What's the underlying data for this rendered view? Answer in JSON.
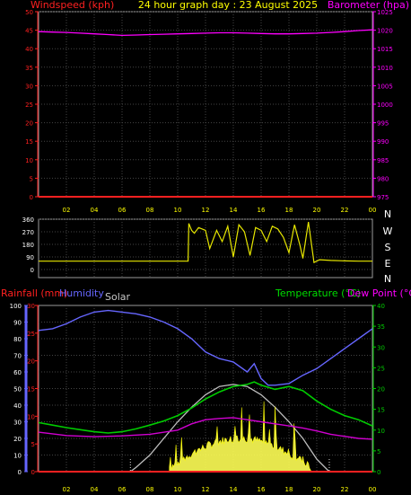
{
  "header": {
    "left_label": "Windspeed (kph)",
    "title": "24 hour graph day : 23 August 2025",
    "right_label": "Barometer (hpa)"
  },
  "colors": {
    "wind": "#ff2020",
    "barometer": "#ff00ff",
    "direction": "#e6e600",
    "humidity": "#6666ff",
    "rain": "#ff2020",
    "solar": "#ffff55",
    "temperature": "#00cc00",
    "dewpoint": "#d000d0",
    "xaxis": "#ffff00",
    "grid": "#444444"
  },
  "labels": {
    "rainfall": "Rainfall (mm)",
    "humidity": "Humidity",
    "solar": "Solar",
    "temperature": "Temperature (°C)",
    "dewpoint": "Dew Point (°C)"
  },
  "chart_data": [
    {
      "type": "line",
      "name": "wind-barometer",
      "x_ticks": [
        "02",
        "04",
        "06",
        "08",
        "10",
        "12",
        "14",
        "16",
        "18",
        "20",
        "22",
        "00"
      ],
      "y_left_ticks": [
        "0",
        "5",
        "10",
        "15",
        "20",
        "25",
        "30",
        "35",
        "40",
        "45",
        "50"
      ],
      "y_left_lim": [
        0,
        50
      ],
      "y_right_ticks": [
        "975",
        "980",
        "985",
        "990",
        "995",
        "1000",
        "1005",
        "1010",
        "1015",
        "1020",
        "1025"
      ],
      "y_right_lim": [
        975,
        1025
      ],
      "series": [
        {
          "name": "Windspeed (kph)",
          "axis": "left",
          "x": [
            0,
            24
          ],
          "values": [
            0,
            0
          ]
        },
        {
          "name": "Barometer (hpa)",
          "axis": "right",
          "x": [
            0,
            1,
            2,
            3,
            4,
            5,
            6,
            7,
            8,
            9,
            10,
            11,
            12,
            13,
            14,
            15,
            16,
            17,
            18,
            19,
            20,
            21,
            22,
            23,
            24
          ],
          "values": [
            1019.6,
            1019.5,
            1019.4,
            1019.2,
            1019.0,
            1018.8,
            1018.6,
            1018.7,
            1018.8,
            1018.9,
            1019.0,
            1019.1,
            1019.2,
            1019.3,
            1019.3,
            1019.2,
            1019.1,
            1019.0,
            1019.0,
            1019.1,
            1019.2,
            1019.4,
            1019.6,
            1019.9,
            1020.1
          ]
        }
      ]
    },
    {
      "type": "line",
      "name": "wind-direction",
      "y_ticks": [
        "0",
        "90",
        "180",
        "270",
        "360"
      ],
      "y_lim": [
        0,
        360
      ],
      "compass": [
        "N",
        "W",
        "S",
        "E",
        "N"
      ],
      "series": [
        {
          "name": "Wind Direction",
          "x": [
            0,
            10.75,
            10.8,
            11,
            11.2,
            11.5,
            12,
            12.3,
            12.8,
            13.2,
            13.6,
            14,
            14.4,
            14.8,
            15.2,
            15.6,
            16,
            16.4,
            16.8,
            17.2,
            17.6,
            18,
            18.4,
            18.8,
            19,
            19.4,
            19.8,
            20.2,
            21,
            22,
            23,
            24
          ],
          "values": [
            60,
            60,
            330,
            280,
            260,
            300,
            280,
            150,
            280,
            200,
            310,
            90,
            320,
            270,
            100,
            300,
            280,
            200,
            310,
            290,
            230,
            120,
            320,
            170,
            80,
            340,
            50,
            70,
            65,
            62,
            60,
            60
          ]
        }
      ]
    },
    {
      "type": "line",
      "name": "temperature-humidity-rain-solar",
      "y_hum_ticks": [
        "0",
        "10",
        "20",
        "30",
        "40",
        "50",
        "60",
        "70",
        "80",
        "90",
        "100"
      ],
      "y_hum_lim": [
        0,
        100
      ],
      "y_rain_ticks": [
        "0",
        "5",
        "10",
        "15",
        "20",
        "25",
        "30"
      ],
      "y_rain_lim": [
        0,
        30
      ],
      "y_temp_ticks": [
        "0",
        "5",
        "10",
        "15",
        "20",
        "25",
        "30",
        "35",
        "40"
      ],
      "y_temp_lim": [
        0,
        40
      ],
      "series": [
        {
          "name": "Humidity",
          "axis": "humidity",
          "x": [
            0,
            1,
            2,
            3,
            4,
            5,
            6,
            7,
            8,
            9,
            10,
            11,
            12,
            13,
            14,
            15,
            15.5,
            16,
            16.5,
            17,
            18,
            19,
            20,
            21,
            22,
            23,
            24
          ],
          "values": [
            85,
            86,
            89,
            93,
            96,
            97,
            96,
            95,
            93,
            90,
            86,
            80,
            72,
            68,
            66,
            60,
            65,
            56,
            52,
            52,
            53,
            58,
            62,
            68,
            74,
            80,
            86
          ]
        },
        {
          "name": "Temperature (°C)",
          "axis": "temp",
          "x": [
            0,
            1,
            2,
            3,
            4,
            5,
            6,
            7,
            8,
            9,
            10,
            11,
            12,
            13,
            14,
            15,
            15.5,
            16,
            17,
            18,
            19,
            20,
            21,
            22,
            23,
            24
          ],
          "values": [
            11.8,
            11.2,
            10.6,
            10.1,
            9.6,
            9.3,
            9.6,
            10.3,
            11.2,
            12.2,
            13.5,
            15.3,
            17.5,
            19.2,
            20.5,
            21.0,
            21.6,
            20.8,
            19.8,
            20.5,
            19.5,
            17.0,
            15.0,
            13.5,
            12.5,
            11.0
          ]
        },
        {
          "name": "Dew Point (°C)",
          "axis": "temp",
          "x": [
            0,
            2,
            4,
            6,
            8,
            10,
            11,
            12,
            13,
            14,
            15,
            16,
            17,
            18,
            19,
            20,
            21,
            22,
            23,
            24
          ],
          "values": [
            9.5,
            8.7,
            8.4,
            8.6,
            9.0,
            10.0,
            11.5,
            12.5,
            12.8,
            13.0,
            12.5,
            12.0,
            11.5,
            11.0,
            10.5,
            9.8,
            9.0,
            8.5,
            8.0,
            7.8
          ]
        },
        {
          "name": "Rainfall (mm)",
          "axis": "rain",
          "x": [
            0,
            24
          ],
          "values": [
            0,
            0
          ]
        },
        {
          "name": "Solar",
          "axis": "temp",
          "x": [
            6.6,
            7,
            8,
            9,
            10,
            11,
            12,
            13,
            14,
            15,
            16,
            17,
            18,
            19,
            20,
            20.9
          ],
          "values": [
            0,
            1,
            4,
            8,
            12,
            15.5,
            18.5,
            20.5,
            21,
            20.5,
            18.5,
            15.5,
            12,
            8,
            3,
            0
          ]
        }
      ]
    }
  ]
}
